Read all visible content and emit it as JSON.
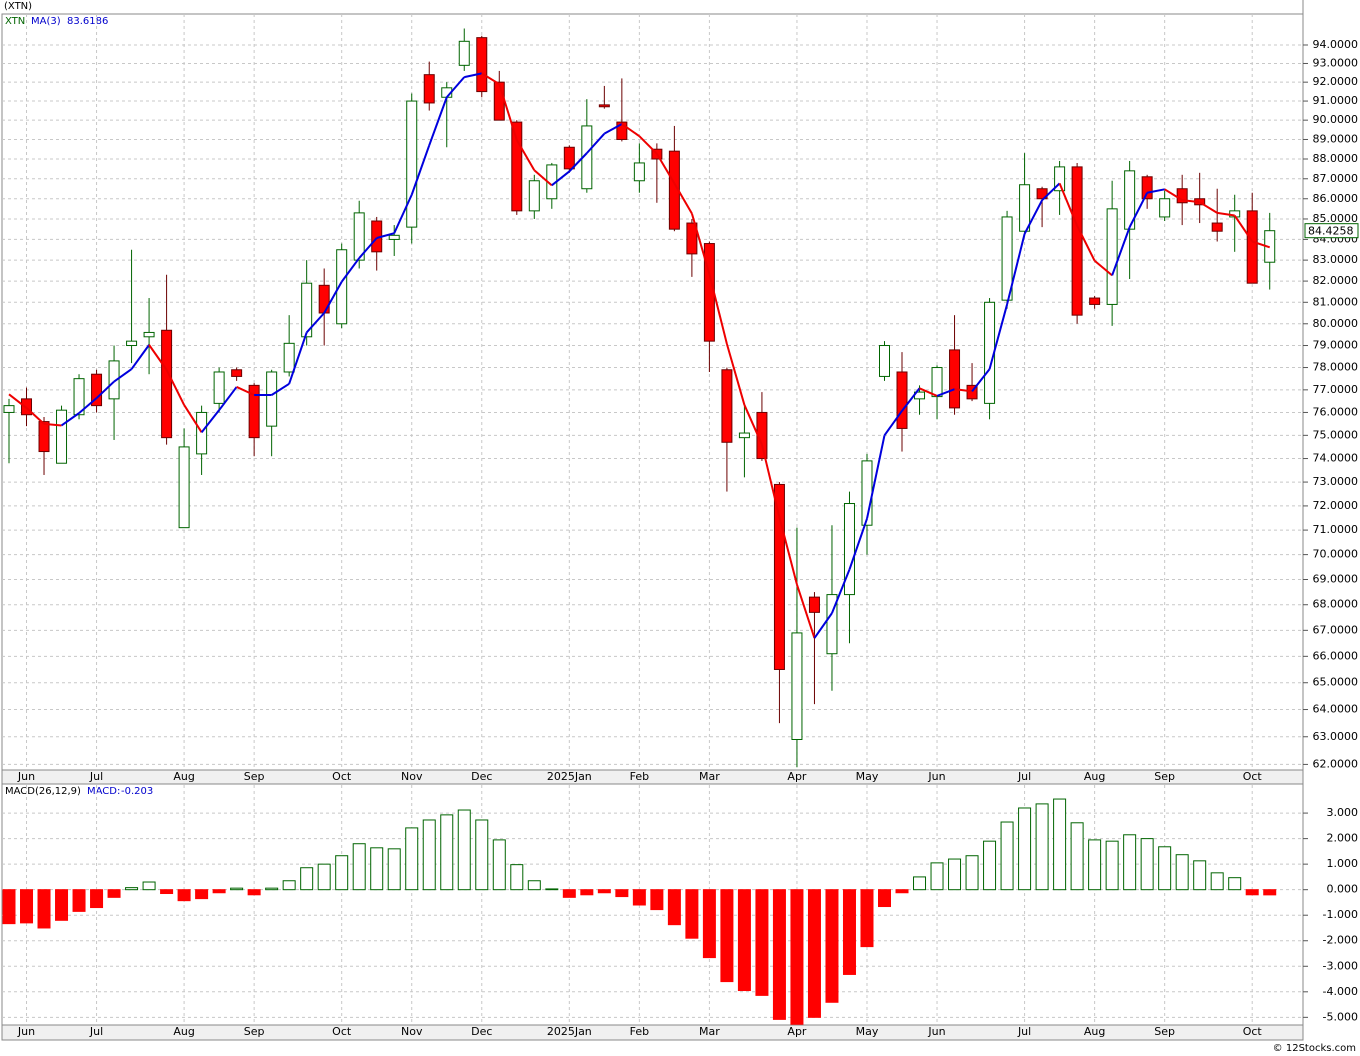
{
  "title": "(XTN)",
  "footer": "© 12Stocks.com",
  "chart_data": [
    {
      "type": "candlestick",
      "symbol": "XTN",
      "ma_name": "MA(3)",
      "categories": [
        null,
        "Jun",
        null,
        null,
        null,
        "Jul",
        null,
        null,
        null,
        null,
        "Aug",
        null,
        null,
        null,
        "Sep",
        null,
        null,
        null,
        null,
        "Oct",
        null,
        null,
        null,
        "Nov",
        null,
        null,
        null,
        "Dec",
        null,
        null,
        null,
        null,
        "2025Jan",
        null,
        null,
        null,
        "Feb",
        null,
        null,
        null,
        "Mar",
        null,
        null,
        null,
        null,
        "Apr",
        null,
        null,
        null,
        "May",
        null,
        null,
        null,
        "Jun",
        null,
        null,
        null,
        null,
        "Jul",
        null,
        null,
        null,
        "Aug",
        null,
        null,
        null,
        "Sep",
        null,
        null,
        null,
        null,
        "Oct",
        null
      ],
      "open": [
        76.0,
        76.6,
        75.6,
        73.8,
        75.9,
        77.7,
        76.6,
        79.0,
        79.4,
        79.7,
        71.1,
        74.2,
        76.4,
        77.9,
        77.2,
        75.4,
        77.8,
        79.4,
        81.8,
        80.0,
        83.0,
        84.9,
        84.0,
        84.6,
        92.4,
        91.2,
        92.9,
        94.4,
        92.0,
        89.9,
        85.4,
        86.0,
        88.6,
        86.5,
        90.8,
        89.9,
        86.9,
        88.5,
        88.4,
        84.8,
        83.8,
        77.9,
        74.9,
        76.0,
        72.9,
        62.9,
        68.3,
        66.1,
        68.4,
        71.2,
        77.6,
        77.8,
        76.6,
        76.7,
        78.8,
        77.2,
        76.4,
        81.1,
        84.4,
        86.5,
        86.4,
        87.6,
        81.2,
        80.9,
        84.5,
        87.1,
        85.1,
        86.5,
        86.0,
        84.8,
        85.1,
        85.4,
        82.9
      ],
      "high": [
        76.6,
        77.1,
        75.8,
        76.3,
        77.7,
        77.9,
        79.0,
        83.5,
        81.2,
        82.3,
        75.3,
        76.3,
        78.0,
        78.0,
        77.3,
        77.9,
        80.4,
        83.0,
        82.6,
        83.8,
        85.9,
        85.1,
        84.7,
        91.4,
        93.1,
        92.0,
        94.9,
        94.5,
        92.6,
        90.0,
        87.2,
        87.8,
        88.7,
        91.1,
        91.8,
        92.2,
        88.8,
        88.8,
        89.7,
        85.0,
        83.9,
        78.0,
        76.4,
        76.9,
        73.0,
        71.1,
        68.5,
        71.2,
        72.6,
        74.2,
        79.2,
        78.7,
        77.2,
        78.1,
        80.4,
        78.2,
        81.2,
        85.4,
        88.3,
        86.6,
        87.9,
        87.8,
        81.3,
        86.9,
        87.9,
        87.2,
        86.4,
        87.2,
        87.3,
        86.5,
        86.2,
        86.3,
        85.3
      ],
      "low": [
        73.8,
        75.4,
        73.3,
        73.8,
        75.7,
        76.0,
        74.8,
        78.2,
        77.7,
        74.6,
        71.1,
        73.3,
        76.0,
        77.4,
        74.1,
        74.1,
        77.6,
        79.0,
        79.0,
        79.8,
        82.6,
        82.5,
        83.2,
        83.8,
        90.5,
        88.6,
        92.6,
        91.2,
        90.0,
        85.2,
        85.0,
        85.5,
        87.3,
        86.3,
        90.6,
        88.9,
        86.3,
        85.8,
        84.4,
        82.2,
        77.8,
        72.6,
        73.2,
        73.9,
        63.5,
        61.9,
        64.2,
        64.7,
        66.5,
        70.0,
        77.4,
        74.3,
        75.9,
        75.7,
        75.9,
        76.5,
        75.7,
        80.7,
        84.2,
        84.6,
        85.2,
        80.0,
        80.7,
        79.9,
        82.1,
        85.5,
        84.9,
        84.7,
        84.8,
        83.9,
        83.4,
        81.9,
        81.6
      ],
      "close": [
        76.3,
        75.9,
        74.3,
        76.1,
        77.5,
        76.3,
        78.3,
        79.2,
        79.6,
        74.9,
        74.5,
        76.0,
        77.8,
        77.6,
        74.9,
        77.8,
        79.1,
        81.9,
        80.5,
        83.5,
        85.3,
        83.4,
        84.2,
        91.0,
        90.9,
        91.7,
        94.2,
        91.5,
        90.0,
        85.4,
        86.9,
        87.7,
        87.5,
        89.7,
        90.7,
        89.0,
        87.8,
        88.0,
        84.5,
        83.3,
        79.2,
        74.7,
        75.1,
        74.0,
        65.5,
        66.9,
        67.7,
        68.4,
        72.1,
        73.9,
        79.0,
        75.3,
        76.9,
        78.0,
        76.2,
        76.6,
        81.0,
        85.1,
        86.7,
        86.0,
        87.6,
        80.4,
        80.9,
        85.5,
        87.4,
        86.0,
        86.0,
        85.8,
        85.7,
        84.4,
        85.4,
        81.9,
        84.4258
      ],
      "ma": [
        76.8,
        76.2,
        75.5,
        75.43,
        75.97,
        76.63,
        77.37,
        77.93,
        79.03,
        77.9,
        76.33,
        75.13,
        76.1,
        77.13,
        76.77,
        76.77,
        77.27,
        79.6,
        80.5,
        81.97,
        83.1,
        84.07,
        84.3,
        86.2,
        88.7,
        91.2,
        92.27,
        92.47,
        91.9,
        88.97,
        87.43,
        86.67,
        87.37,
        88.3,
        89.3,
        89.8,
        89.17,
        88.27,
        86.77,
        85.27,
        82.33,
        79.07,
        76.33,
        74.6,
        71.53,
        68.8,
        66.7,
        67.67,
        69.4,
        71.47,
        75.0,
        76.07,
        77.07,
        76.73,
        77.03,
        76.93,
        77.93,
        80.9,
        84.27,
        85.93,
        86.77,
        84.67,
        82.97,
        82.27,
        84.6,
        86.3,
        86.47,
        85.93,
        85.83,
        85.3,
        85.17,
        83.9,
        83.6186
      ],
      "up_color": "#006400",
      "down_color": "#ff0000",
      "down_edge": "#6b0000",
      "ma_up_color": "#0000dd",
      "ma_down_color": "#ee0000",
      "log_scale": true,
      "grid": true,
      "ylim": [
        61.8,
        95.7
      ],
      "yticks": [
        {
          "value": 62,
          "label": "62.0000"
        },
        {
          "value": 63,
          "label": "63.0000"
        },
        {
          "value": 64,
          "label": "64.0000"
        },
        {
          "value": 65,
          "label": "65.0000"
        },
        {
          "value": 66,
          "label": "66.0000"
        },
        {
          "value": 67,
          "label": "67.0000"
        },
        {
          "value": 68,
          "label": "68.0000"
        },
        {
          "value": 69,
          "label": "69.0000"
        },
        {
          "value": 70,
          "label": "70.0000"
        },
        {
          "value": 71,
          "label": "71.0000"
        },
        {
          "value": 72,
          "label": "72.0000"
        },
        {
          "value": 73,
          "label": "73.0000"
        },
        {
          "value": 74,
          "label": "74.0000"
        },
        {
          "value": 75,
          "label": "75.0000"
        },
        {
          "value": 76,
          "label": "76.0000"
        },
        {
          "value": 77,
          "label": "77.0000"
        },
        {
          "value": 78,
          "label": "78.0000"
        },
        {
          "value": 79,
          "label": "79.0000"
        },
        {
          "value": 80,
          "label": "80.0000"
        },
        {
          "value": 81,
          "label": "81.0000"
        },
        {
          "value": 82,
          "label": "82.0000"
        },
        {
          "value": 83,
          "label": "83.0000"
        },
        {
          "value": 84,
          "label": "84.0000"
        },
        {
          "value": 85,
          "label": "85.0000"
        },
        {
          "value": 86,
          "label": "86.0000"
        },
        {
          "value": 87,
          "label": "87.0000"
        },
        {
          "value": 88,
          "label": "88.0000"
        },
        {
          "value": 89,
          "label": "89.0000"
        },
        {
          "value": 90,
          "label": "90.0000"
        },
        {
          "value": 91,
          "label": "91.0000"
        },
        {
          "value": 92,
          "label": "92.0000"
        },
        {
          "value": 93,
          "label": "93.0000"
        },
        {
          "value": 94,
          "label": "94.0000"
        }
      ]
    },
    {
      "type": "bar",
      "title": "MACD(26,12,9)",
      "value_name": "MACD:",
      "categories": [
        null,
        "Jun",
        null,
        null,
        null,
        "Jul",
        null,
        null,
        null,
        null,
        "Aug",
        null,
        null,
        null,
        "Sep",
        null,
        null,
        null,
        null,
        "Oct",
        null,
        null,
        null,
        "Nov",
        null,
        null,
        null,
        "Dec",
        null,
        null,
        null,
        null,
        "2025Jan",
        null,
        null,
        null,
        "Feb",
        null,
        null,
        null,
        "Mar",
        null,
        null,
        null,
        null,
        "Apr",
        null,
        null,
        null,
        "May",
        null,
        null,
        null,
        "Jun",
        null,
        null,
        null,
        null,
        "Jul",
        null,
        null,
        null,
        "Aug",
        null,
        null,
        null,
        "Sep",
        null,
        null,
        null,
        null,
        "Oct",
        null
      ],
      "values": [
        -1.33,
        -1.3,
        -1.5,
        -1.2,
        -0.85,
        -0.7,
        -0.3,
        0.08,
        0.3,
        -0.15,
        -0.43,
        -0.35,
        -0.12,
        0.06,
        -0.2,
        0.06,
        0.35,
        0.86,
        1.0,
        1.33,
        1.8,
        1.64,
        1.6,
        2.42,
        2.73,
        2.93,
        3.12,
        2.73,
        1.95,
        0.98,
        0.35,
        0.03,
        -0.3,
        -0.2,
        -0.12,
        -0.27,
        -0.6,
        -0.78,
        -1.37,
        -1.9,
        -2.66,
        -3.6,
        -3.95,
        -4.14,
        -5.08,
        -5.27,
        -5.0,
        -4.41,
        -3.32,
        -2.23,
        -0.66,
        -0.12,
        0.5,
        1.05,
        1.2,
        1.33,
        1.9,
        2.65,
        3.2,
        3.36,
        3.55,
        2.62,
        1.95,
        1.9,
        2.15,
        2.0,
        1.68,
        1.37,
        1.13,
        0.66,
        0.47,
        -0.2,
        -0.203
      ],
      "up_color": "#006400",
      "down_color": "#ff0000",
      "grid": true,
      "ylim": [
        -5.3,
        4.1
      ],
      "yticks": [
        {
          "value": 3,
          "label": "3.000"
        },
        {
          "value": 2,
          "label": "2.000"
        },
        {
          "value": 1,
          "label": "1.000"
        },
        {
          "value": 0,
          "label": "0.000"
        },
        {
          "value": -1,
          "label": "-1.000"
        },
        {
          "value": -2,
          "label": "-2.000"
        },
        {
          "value": -3,
          "label": "-3.000"
        },
        {
          "value": -4,
          "label": "-4.000"
        },
        {
          "value": -5,
          "label": "-5.000"
        }
      ]
    }
  ]
}
